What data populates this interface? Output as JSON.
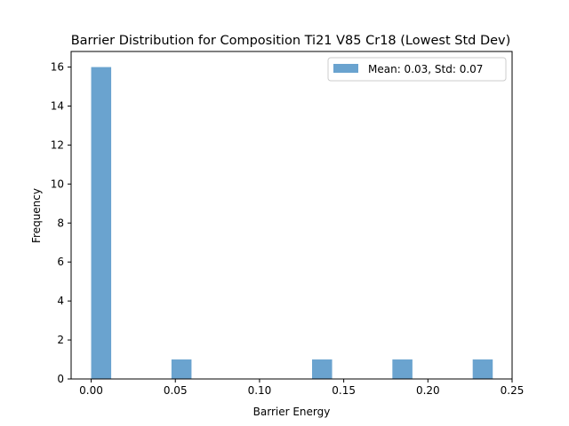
{
  "chart_data": {
    "type": "bar",
    "title": "Barrier Distribution for Composition Ti21 V85 Cr18 (Lowest Std Dev)",
    "xlabel": "Barrier Energy",
    "ylabel": "Frequency",
    "xlim": [
      -0.0119,
      0.25
    ],
    "ylim": [
      0,
      16.8
    ],
    "xticks": [
      0.0,
      0.05,
      0.1,
      0.15,
      0.2,
      0.25
    ],
    "xtick_labels": [
      "0.00",
      "0.05",
      "0.10",
      "0.15",
      "0.20",
      "0.25"
    ],
    "yticks": [
      0,
      2,
      4,
      6,
      8,
      10,
      12,
      14,
      16
    ],
    "ytick_labels": [
      "0",
      "2",
      "4",
      "6",
      "8",
      "10",
      "12",
      "14",
      "16"
    ],
    "bar_color": "#6aa3cf",
    "bins": [
      {
        "x0": 0.0,
        "x1": 0.0119,
        "count": 16
      },
      {
        "x0": 0.0477,
        "x1": 0.0596,
        "count": 1
      },
      {
        "x0": 0.1312,
        "x1": 0.1431,
        "count": 1
      },
      {
        "x0": 0.1789,
        "x1": 0.1908,
        "count": 1
      },
      {
        "x0": 0.2266,
        "x1": 0.2385,
        "count": 1
      }
    ],
    "legend": {
      "label": "Mean: 0.03, Std: 0.07",
      "position": "top-right"
    },
    "grid": false
  }
}
